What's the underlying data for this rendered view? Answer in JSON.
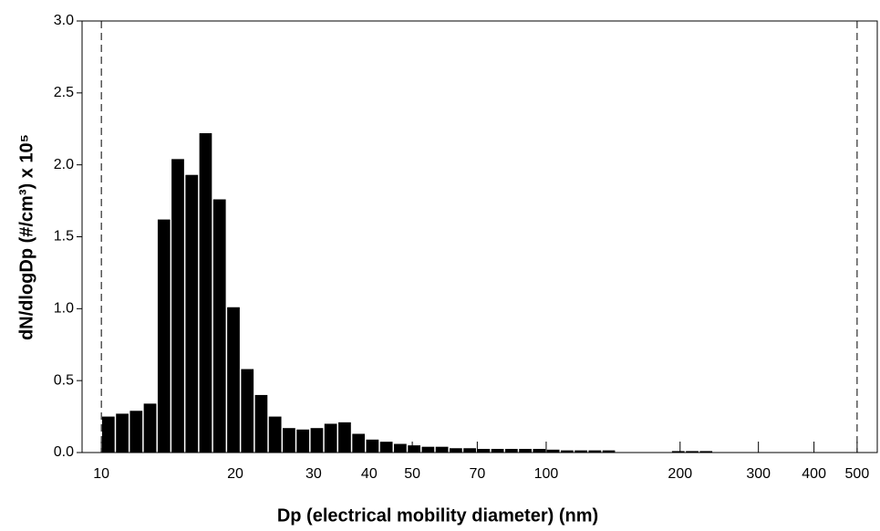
{
  "chart_data": {
    "type": "histogram",
    "xlabel": "Dp (electrical mobility diameter) (nm)",
    "ylabel": "dN/dlogDp (#/cm³) x 10⁵",
    "bins": [
      10,
      10.75,
      11.55,
      12.41,
      13.34,
      14.33,
      15.4,
      16.55,
      17.78,
      19.11,
      20.54,
      22.07,
      23.71,
      25.48,
      27.38,
      29.43,
      31.62,
      33.98,
      36.52,
      39.24,
      42.17,
      45.32,
      48.7,
      52.33,
      56.23,
      60.43,
      64.94,
      69.78,
      74.99,
      80.58,
      86.6,
      93.06,
      100,
      107.5,
      115.5,
      124.1,
      133.4,
      143.3,
      154,
      165.5,
      177.8,
      191.1,
      205.4,
      220.7,
      237.1
    ],
    "counts": [
      0.25,
      0.27,
      0.29,
      0.34,
      1.62,
      2.04,
      1.93,
      2.22,
      1.76,
      1.01,
      0.58,
      0.4,
      0.25,
      0.17,
      0.16,
      0.17,
      0.2,
      0.21,
      0.13,
      0.09,
      0.075,
      0.06,
      0.05,
      0.04,
      0.04,
      0.03,
      0.03,
      0.025,
      0.025,
      0.025,
      0.025,
      0.025,
      0.02,
      0.015,
      0.015,
      0.015,
      0.015,
      0,
      0,
      0,
      0,
      0.01,
      0.01,
      0.01
    ],
    "color": "#000000",
    "xscale": "log",
    "xlim": [
      9.05,
      555
    ],
    "xticks": [
      10,
      20,
      30,
      40,
      50,
      70,
      100,
      200,
      300,
      400,
      500
    ],
    "ylim": [
      0,
      3
    ],
    "yticks": [
      {
        "value": 0,
        "label": "0.0"
      },
      {
        "value": 0.5,
        "label": "0.5"
      },
      {
        "value": 1,
        "label": "1.0"
      },
      {
        "value": 1.5,
        "label": "1.5"
      },
      {
        "value": 2,
        "label": "2.0"
      },
      {
        "value": 2.5,
        "label": "2.5"
      },
      {
        "value": 3,
        "label": "3.0"
      }
    ],
    "dashed_lines": [
      10,
      500
    ]
  }
}
